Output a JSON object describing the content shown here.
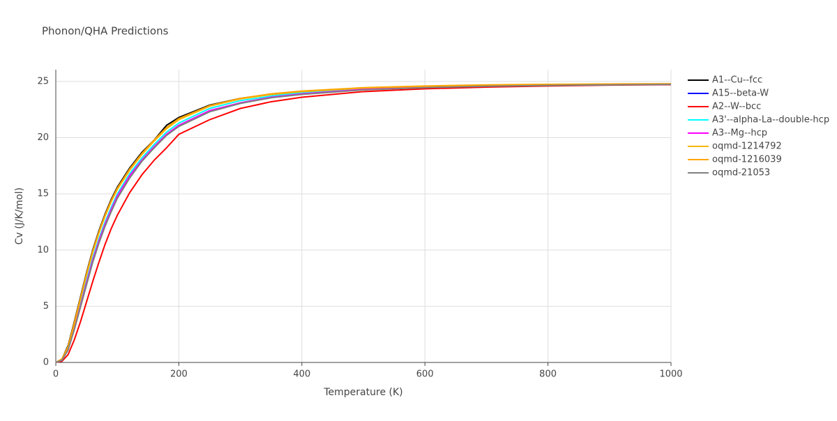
{
  "chart_data": {
    "type": "line",
    "title": "Phonon/QHA Predictions",
    "x_label": "Temperature (K)",
    "y_label": "Cv (J/K/mol)",
    "x": [
      0,
      10,
      20,
      30,
      40,
      50,
      60,
      70,
      80,
      90,
      100,
      120,
      140,
      160,
      180,
      200,
      250,
      300,
      350,
      400,
      500,
      600,
      700,
      800,
      900,
      1000
    ],
    "xlim": [
      0,
      1000
    ],
    "xticks": [
      0,
      200,
      400,
      600,
      800,
      1000
    ],
    "ylim": [
      0,
      26.05
    ],
    "yticks": [
      0,
      5,
      10,
      15,
      20,
      25
    ],
    "grid": true,
    "legend": "right",
    "series": [
      {
        "name": "A1--Cu--fcc",
        "color": "#000000",
        "values": [
          0,
          0.3,
          1.5,
          3.6,
          5.8,
          8.0,
          10.0,
          11.7,
          13.2,
          14.5,
          15.6,
          17.3,
          18.7,
          19.8,
          21.1,
          21.8,
          22.9,
          23.5,
          23.85,
          24.1,
          24.4,
          24.55,
          24.65,
          24.7,
          24.73,
          24.76
        ]
      },
      {
        "name": "A15--beta-W",
        "color": "#0000ff",
        "values": [
          0,
          0.2,
          1.2,
          3.0,
          5.0,
          7.1,
          9.1,
          10.8,
          12.3,
          13.6,
          14.8,
          16.6,
          18.0,
          19.2,
          20.3,
          21.1,
          22.4,
          23.1,
          23.6,
          23.9,
          24.3,
          24.5,
          24.6,
          24.67,
          24.72,
          24.75
        ]
      },
      {
        "name": "A2--W--bcc",
        "color": "#ff0000",
        "values": [
          0,
          0.1,
          0.7,
          2.0,
          3.6,
          5.4,
          7.2,
          8.9,
          10.5,
          11.9,
          13.1,
          15.1,
          16.7,
          18.0,
          19.1,
          20.3,
          21.6,
          22.6,
          23.2,
          23.6,
          24.1,
          24.35,
          24.5,
          24.6,
          24.68,
          24.72
        ]
      },
      {
        "name": "A3'--alpha-La--double-hcp",
        "color": "#00ffff",
        "values": [
          0,
          0.2,
          1.3,
          3.2,
          5.2,
          7.3,
          9.3,
          11.0,
          12.5,
          13.8,
          15.0,
          16.8,
          18.2,
          19.4,
          20.5,
          21.3,
          22.6,
          23.3,
          23.7,
          24.0,
          24.35,
          24.52,
          24.62,
          24.68,
          24.72,
          24.75
        ]
      },
      {
        "name": "A3--Mg--hcp",
        "color": "#ff00ff",
        "values": [
          0,
          0.2,
          1.2,
          3.0,
          5.0,
          7.1,
          9.1,
          10.8,
          12.3,
          13.6,
          14.8,
          16.6,
          18.0,
          19.2,
          20.3,
          21.1,
          22.4,
          23.1,
          23.6,
          23.9,
          24.3,
          24.5,
          24.6,
          24.67,
          24.72,
          24.75
        ]
      },
      {
        "name": "oqmd-1214792",
        "color": "#f5b800",
        "values": [
          0,
          0.3,
          1.4,
          3.4,
          5.6,
          7.8,
          9.8,
          11.5,
          13.0,
          14.3,
          15.4,
          17.1,
          18.5,
          19.7,
          20.8,
          21.6,
          22.8,
          23.45,
          23.85,
          24.1,
          24.42,
          24.58,
          24.68,
          24.73,
          24.76,
          24.78
        ]
      },
      {
        "name": "oqmd-1216039",
        "color": "#ffa500",
        "values": [
          0,
          0.3,
          1.4,
          3.5,
          5.7,
          7.9,
          9.9,
          11.6,
          13.1,
          14.4,
          15.5,
          17.2,
          18.6,
          19.8,
          20.9,
          21.7,
          22.85,
          23.5,
          23.9,
          24.15,
          24.45,
          24.6,
          24.7,
          24.75,
          24.78,
          24.8
        ]
      },
      {
        "name": "oqmd-21053",
        "color": "#808080",
        "values": [
          0,
          0.2,
          1.1,
          2.9,
          4.9,
          6.9,
          8.9,
          10.6,
          12.1,
          13.4,
          14.6,
          16.4,
          17.9,
          19.1,
          20.2,
          21.0,
          22.3,
          23.05,
          23.55,
          23.85,
          24.25,
          24.45,
          24.58,
          24.65,
          24.7,
          24.74
        ]
      }
    ]
  }
}
